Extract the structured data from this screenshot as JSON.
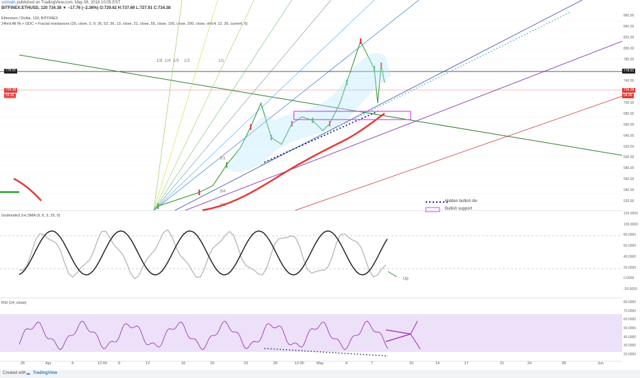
{
  "publish_line": {
    "user": "sclmatn",
    "text": "published on TradingView.com, May 08, 2018 10:05 EST"
  },
  "symbol_line": "BITFINEX:ETHUSD, 120  734.38 ▼ −17.76 (−2.36%) O:729.62 H:737.69 L:727.91 C:734.38",
  "chart_title": "Ethereum / Dollar, 120, BITFINEX",
  "indicator_line": "24hrd All IN + GDC + Fractal resistances (20, close, 2, 9, 26, 52, 26, 13, close, 21, close, 55, close, 100, close, 200, close, ohlc4, 12, 26, current, 6)",
  "price_tags": {
    "upper": "778.91",
    "last": "734.38",
    "last2": "54:46",
    "left_upper": "778.91",
    "left_last": "734.38",
    "left_last2": "54:46"
  },
  "price_scale": [
    "860.00",
    "840.00",
    "820.00",
    "800.00",
    "780.00",
    "760.00",
    "740.00",
    "720.00",
    "700.00",
    "680.00",
    "660.00",
    "640.00",
    "620.00",
    "600.00",
    "580.00",
    "560.00",
    "540.00",
    "520.00"
  ],
  "fib_labels": [
    "1/8",
    "1/4",
    "1/3",
    "1/2",
    "1/1",
    "2/1",
    "3/4",
    "4/1"
  ],
  "legend": {
    "item1": "Hidden bullish div",
    "item2": "Bullish support"
  },
  "godmode": {
    "label": "Godmode3.2+LSMA (9, 6, 3, 25, 0)",
    "scale": [
      "120.0000",
      "100.0000",
      "80.0000",
      "60.0000",
      "40.0000",
      "20.0000",
      "0.0000",
      "-20.0000"
    ],
    "annotation": "Up"
  },
  "rsi": {
    "label": "RSI (14, close)",
    "scale": [
      "80.0000",
      "70.0000",
      "60.0000",
      "50.0000",
      "40.0000",
      "30.0000",
      "20.0000"
    ]
  },
  "xaxis": [
    "26",
    "Apr",
    "4",
    "12:00",
    "9",
    "12",
    "16",
    "19",
    "23",
    "26",
    "12:00",
    "May",
    "4",
    "7",
    "10",
    "14",
    "17",
    "21",
    "24",
    "28",
    "Jun"
  ],
  "footer": {
    "created": "Created with",
    "brand": "TradingView"
  },
  "colors": {
    "up": "#26a69a",
    "down": "#ef5350",
    "red_tag": "#e53935",
    "black_tag": "#222222",
    "rsi_band": "#e9d8f7",
    "purple": "#9c27b0",
    "navy": "#1a237e"
  }
}
